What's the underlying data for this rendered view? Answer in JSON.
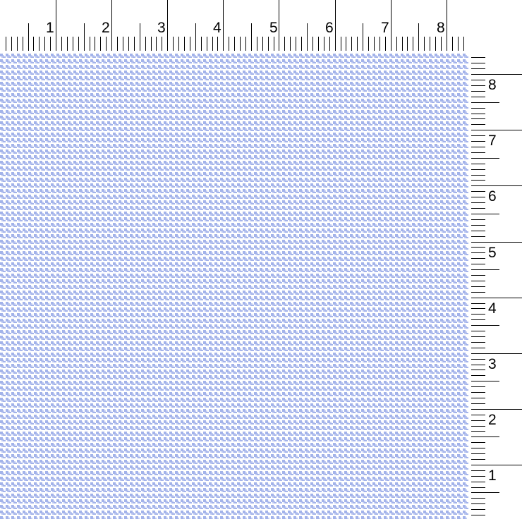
{
  "top_ruler": {
    "labels": [
      "1",
      "2",
      "3",
      "4",
      "5",
      "6",
      "7",
      "8"
    ]
  },
  "right_ruler": {
    "labels": [
      "8",
      "7",
      "6",
      "5",
      "4",
      "3",
      "2",
      "1"
    ]
  },
  "fabric": {
    "pattern": "houndstooth",
    "colors": {
      "foreground": "#a3b3ea",
      "background": "#ffffff"
    }
  }
}
